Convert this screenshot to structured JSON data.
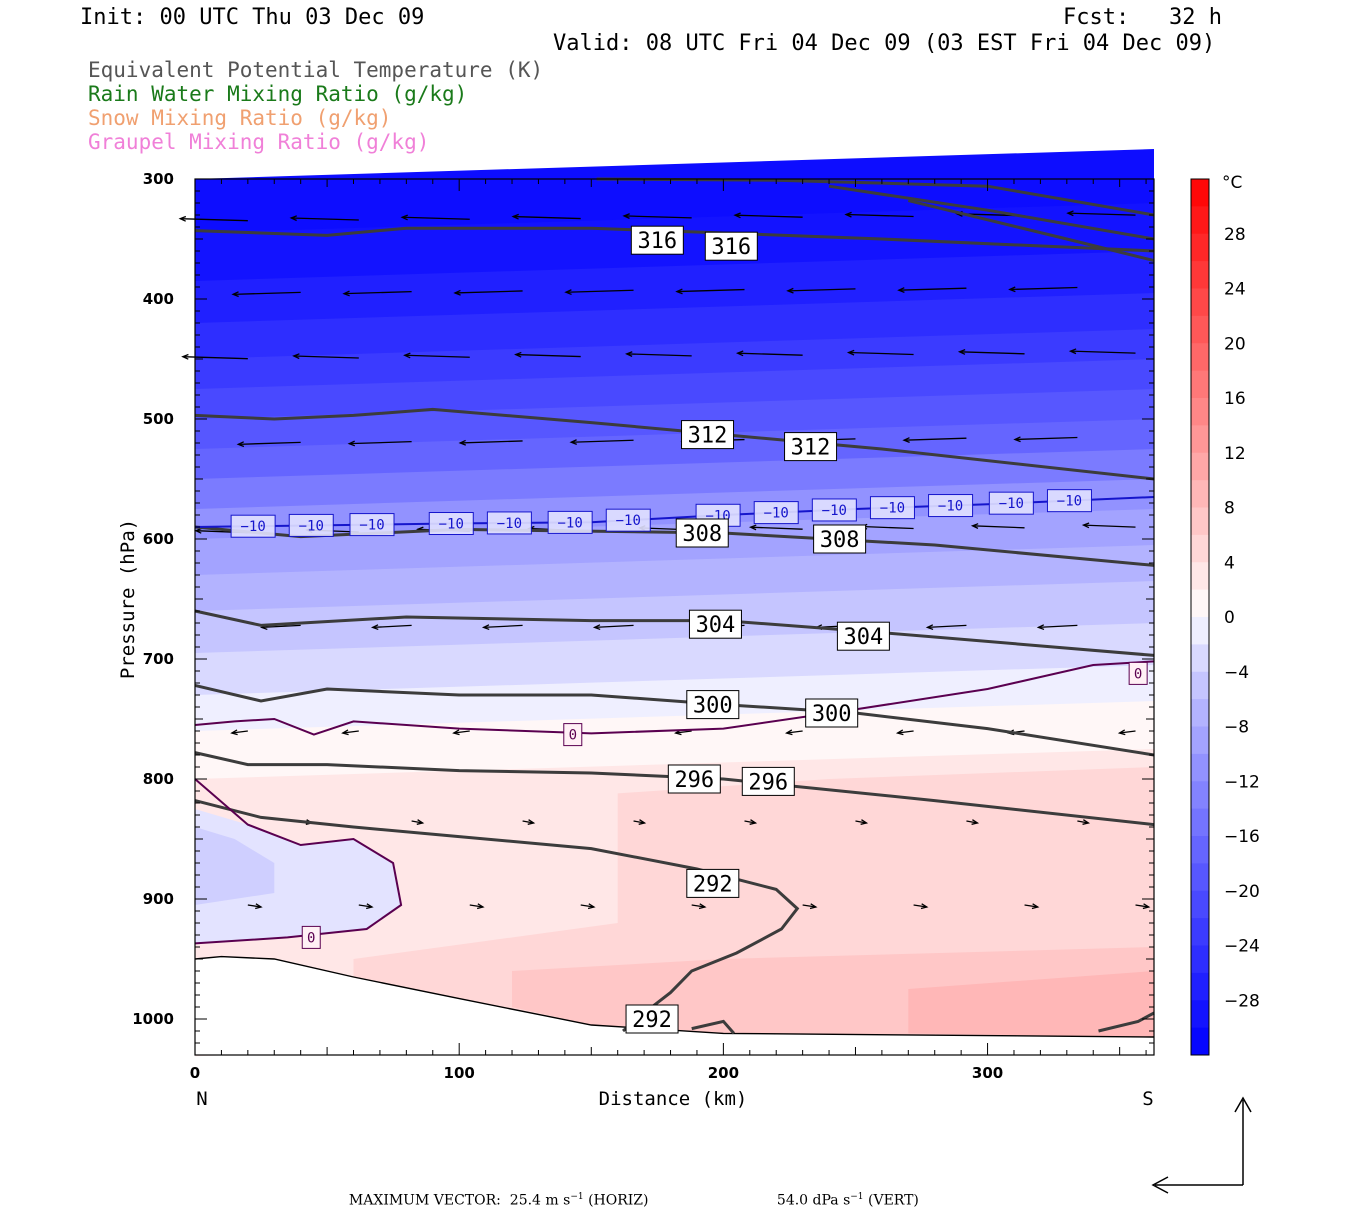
{
  "header": {
    "init": "Init: 00 UTC Thu 03 Dec 09",
    "fcst": "Fcst:   32 h",
    "valid": "Valid: 08 UTC Fri 04 Dec 09 (03 EST Fri 04 Dec 09)"
  },
  "fields": [
    {
      "label": "Equivalent Potential Temperature (K)",
      "color": "#555555"
    },
    {
      "label": "Rain Water Mixing Ratio (g/kg)",
      "color": "#1a7a1a"
    },
    {
      "label": "Snow Mixing Ratio (g/kg)",
      "color": "#f0a070"
    },
    {
      "label": "Graupel Mixing Ratio (g/kg)",
      "color": "#f080d8"
    }
  ],
  "chart_data": {
    "type": "cross-section contour",
    "xlabel": "Distance (km)",
    "ylabel": "Pressure (hPa)",
    "xlim": [
      0,
      363
    ],
    "ylim": [
      1030,
      300
    ],
    "x_ticks": [
      0,
      100,
      200,
      300
    ],
    "y_ticks": [
      300,
      400,
      500,
      600,
      700,
      800,
      900,
      1000
    ],
    "x_end_labels": {
      "left": "N",
      "right": "S"
    },
    "colorbar": {
      "unit": "°C",
      "range": [
        -32,
        32
      ],
      "labels": [
        "28",
        "24",
        "20",
        "16",
        "12",
        "8",
        "4",
        "0",
        "−4",
        "−8",
        "−12",
        "−16",
        "−20",
        "−24",
        "−28"
      ],
      "label_values": [
        28,
        24,
        20,
        16,
        12,
        8,
        4,
        0,
        -4,
        -8,
        -12,
        -16,
        -20,
        -24,
        -28
      ]
    },
    "theta_e_contours": [
      {
        "value": "316",
        "points": [
          [
            0,
            343
          ],
          [
            50,
            347
          ],
          [
            80,
            341
          ],
          [
            150,
            341
          ],
          [
            200,
            345
          ],
          [
            260,
            350
          ],
          [
            363,
            360
          ]
        ]
      },
      {
        "value": "312",
        "points": [
          [
            0,
            497
          ],
          [
            30,
            500
          ],
          [
            60,
            497
          ],
          [
            90,
            492
          ],
          [
            150,
            503
          ],
          [
            200,
            513
          ],
          [
            260,
            525
          ],
          [
            363,
            550
          ]
        ]
      },
      {
        "value": "308",
        "points": [
          [
            0,
            590
          ],
          [
            40,
            598
          ],
          [
            100,
            592
          ],
          [
            200,
            595
          ],
          [
            280,
            605
          ],
          [
            363,
            622
          ]
        ]
      },
      {
        "value": "304",
        "points": [
          [
            0,
            660
          ],
          [
            25,
            672
          ],
          [
            80,
            665
          ],
          [
            150,
            668
          ],
          [
            200,
            668
          ],
          [
            260,
            678
          ],
          [
            363,
            697
          ]
        ]
      },
      {
        "value": "300",
        "points": [
          [
            0,
            722
          ],
          [
            25,
            735
          ],
          [
            50,
            725
          ],
          [
            100,
            730
          ],
          [
            150,
            730
          ],
          [
            200,
            738
          ],
          [
            250,
            745
          ],
          [
            300,
            758
          ],
          [
            363,
            780
          ]
        ]
      },
      {
        "value": "296",
        "points": [
          [
            0,
            778
          ],
          [
            20,
            788
          ],
          [
            50,
            788
          ],
          [
            100,
            793
          ],
          [
            150,
            795
          ],
          [
            200,
            800
          ],
          [
            280,
            818
          ],
          [
            363,
            838
          ]
        ]
      },
      {
        "value": "292",
        "points": [
          [
            0,
            818
          ],
          [
            25,
            832
          ],
          [
            60,
            840
          ],
          [
            100,
            848
          ],
          [
            150,
            858
          ],
          [
            190,
            875
          ],
          [
            220,
            892
          ],
          [
            228,
            908
          ],
          [
            222,
            925
          ],
          [
            205,
            945
          ],
          [
            188,
            960
          ],
          [
            180,
            978
          ],
          [
            170,
            995
          ],
          [
            162,
            1010
          ]
        ]
      },
      {
        "value": "",
        "points": [
          [
            188,
            1008
          ],
          [
            200,
            1002
          ],
          [
            204,
            1012
          ]
        ]
      },
      {
        "value": "",
        "points": [
          [
            342,
            1010
          ],
          [
            357,
            1002
          ],
          [
            363,
            995
          ]
        ]
      },
      {
        "value": "",
        "points": [
          [
            152,
            300
          ],
          [
            220,
            301
          ],
          [
            300,
            306
          ],
          [
            363,
            330
          ]
        ]
      },
      {
        "value": "",
        "points": [
          [
            240,
            306
          ],
          [
            300,
            326
          ],
          [
            363,
            350
          ]
        ]
      },
      {
        "value": "",
        "points": [
          [
            270,
            318
          ],
          [
            330,
            350
          ],
          [
            363,
            368
          ]
        ]
      }
    ],
    "theta_e_labels": [
      {
        "text": "316",
        "x": 175,
        "p": 351
      },
      {
        "text": "316",
        "x": 203,
        "p": 356
      },
      {
        "text": "312",
        "x": 194,
        "p": 513
      },
      {
        "text": "312",
        "x": 233,
        "p": 523
      },
      {
        "text": "308",
        "x": 192,
        "p": 595
      },
      {
        "text": "308",
        "x": 244,
        "p": 600
      },
      {
        "text": "304",
        "x": 197,
        "p": 671
      },
      {
        "text": "304",
        "x": 253,
        "p": 681
      },
      {
        "text": "300",
        "x": 196,
        "p": 738
      },
      {
        "text": "300",
        "x": 241,
        "p": 745
      },
      {
        "text": "296",
        "x": 189,
        "p": 800
      },
      {
        "text": "296",
        "x": 217,
        "p": 802
      },
      {
        "text": "292",
        "x": 196,
        "p": 887
      },
      {
        "text": "292",
        "x": 173,
        "p": 1000
      }
    ],
    "isotherm_minus10": {
      "value": "−10",
      "points": [
        [
          0,
          590
        ],
        [
          100,
          587
        ],
        [
          150,
          586
        ],
        [
          200,
          580
        ],
        [
          250,
          575
        ],
        [
          300,
          571
        ],
        [
          363,
          565
        ]
      ],
      "label_x": [
        22,
        44,
        67,
        97,
        119,
        142,
        164,
        198,
        220,
        242,
        264,
        286,
        309,
        331
      ]
    },
    "isotherm_zero": [
      {
        "points": [
          [
            0,
            755
          ],
          [
            15,
            752
          ],
          [
            30,
            750
          ],
          [
            45,
            763
          ],
          [
            60,
            752
          ],
          [
            100,
            758
          ],
          [
            150,
            762
          ],
          [
            200,
            758
          ],
          [
            250,
            742
          ],
          [
            300,
            725
          ],
          [
            340,
            705
          ],
          [
            363,
            702
          ]
        ]
      },
      {
        "points": [
          [
            0,
            800
          ],
          [
            20,
            838
          ],
          [
            40,
            855
          ],
          [
            60,
            850
          ],
          [
            75,
            870
          ],
          [
            78,
            905
          ],
          [
            65,
            925
          ],
          [
            35,
            932
          ],
          [
            0,
            937
          ]
        ]
      }
    ],
    "zero_labels": [
      {
        "text": "0",
        "x": 143,
        "p": 763
      },
      {
        "text": "0",
        "x": 357,
        "p": 712
      },
      {
        "text": "0",
        "x": 44,
        "p": 932
      }
    ],
    "ground": [
      [
        0,
        950
      ],
      [
        10,
        948
      ],
      [
        30,
        950
      ],
      [
        60,
        965
      ],
      [
        100,
        983
      ],
      [
        150,
        1005
      ],
      [
        200,
        1012
      ],
      [
        363,
        1015
      ]
    ],
    "vector_note": {
      "max_horiz": "25.4",
      "max_vert": "54.0",
      "label": "MAXIMUM VECTOR:",
      "h_unit": "m s",
      "h_tag": "(HORIZ)",
      "v_unit": "dPa s",
      "v_tag": "(VERT)",
      "exp": "−1"
    }
  }
}
